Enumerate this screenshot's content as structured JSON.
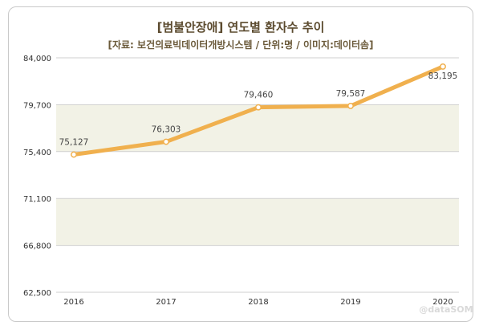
{
  "chart_data": {
    "type": "line",
    "title": "[범불안장애] 연도별 환자수 추이",
    "subtitle": "[자료: 보건의료빅데이터개방시스템 / 단위:명 / 이미지:데이터솜]",
    "categories": [
      "2016",
      "2017",
      "2018",
      "2019",
      "2020"
    ],
    "series": [
      {
        "values": [
          75127,
          76303,
          79460,
          79587,
          83195
        ]
      }
    ],
    "data_labels": [
      "75,127",
      "76,303",
      "79,460",
      "79,587",
      "83,195"
    ],
    "ylim": [
      62500,
      84000
    ],
    "yticks": [
      62500,
      66800,
      71100,
      75400,
      79700,
      84000
    ],
    "ytick_labels": [
      "62,500",
      "66,800",
      "71,100",
      "75,400",
      "79,700",
      "84,000"
    ],
    "grid": true,
    "colors": {
      "line": "#f0b04e",
      "band": "#f2f2e6",
      "grid": "#cfcfcf"
    }
  },
  "watermark": "@dataSOM"
}
